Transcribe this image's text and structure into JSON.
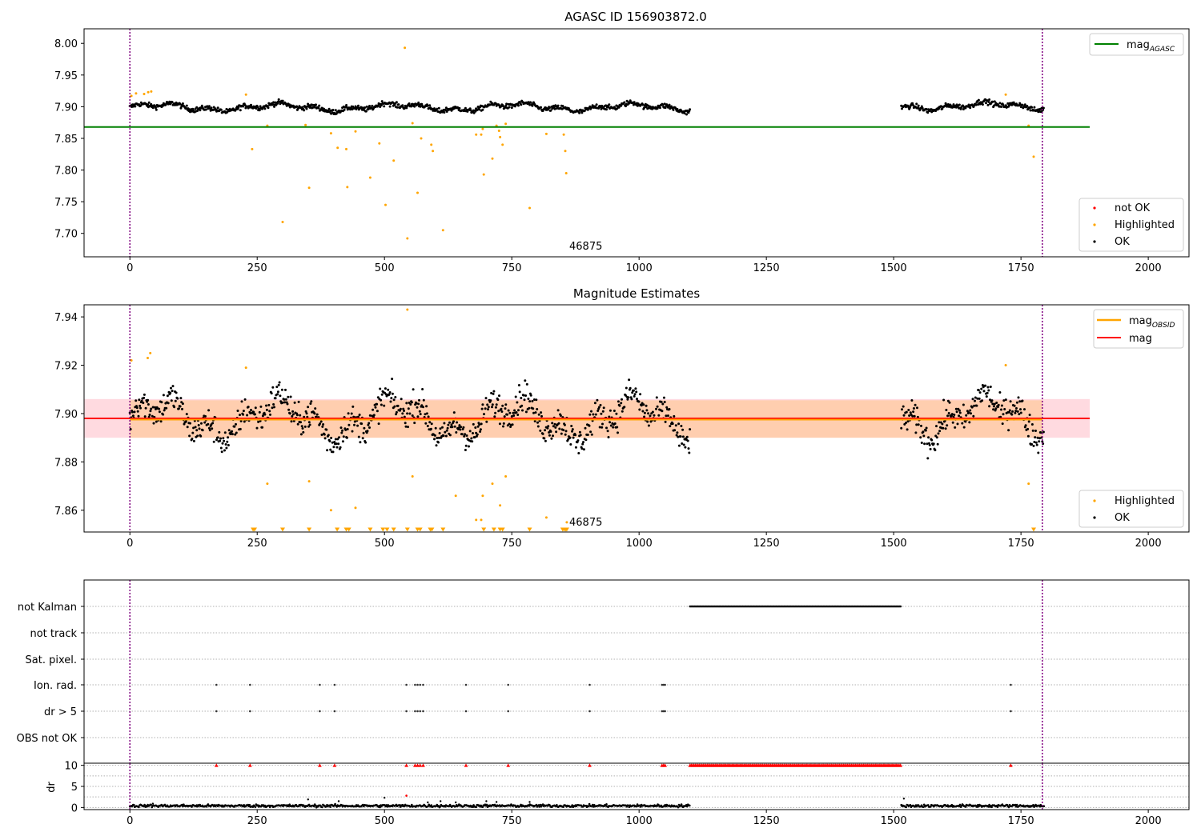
{
  "figure": {
    "top_title": "AGASC ID 156903872.0",
    "middle_title": "Magnitude Estimates",
    "obsid_label": "46875"
  },
  "colors": {
    "ok": "#000000",
    "highlighted": "#ffa500",
    "not_ok": "#ff0000",
    "mag_agasc": "#008000",
    "mag": "#ff0000",
    "mag_obsid": "#ffa500",
    "obs_boundary": "#800080",
    "band": "#ffb6c1"
  },
  "chart_data": [
    {
      "type": "scatter",
      "title": "AGASC ID 156903872.0",
      "xlabel": "",
      "ylabel": "",
      "xlim": [
        -90,
        2080
      ],
      "ylim": [
        7.663,
        8.023
      ],
      "xticks": [
        0,
        250,
        500,
        750,
        1000,
        1250,
        1500,
        1750,
        2000
      ],
      "yticks": [
        7.7,
        7.75,
        7.8,
        7.85,
        7.9,
        7.95,
        8.0
      ],
      "grid": false,
      "legend": [
        {
          "label": "mag",
          "subscript": "AGASC",
          "position": "top-right"
        },
        {
          "labels": [
            "not OK",
            "Highlighted",
            "OK"
          ],
          "position": "bottom-right"
        }
      ],
      "hlines": [
        {
          "name": "mag_AGASC",
          "y": 7.868,
          "x": [
            -90,
            1885
          ]
        }
      ],
      "vlines": [
        0,
        1792
      ],
      "annotation": {
        "text": "46875",
        "x": 860,
        "y": 7.682
      },
      "ok_segments": [
        {
          "x": [
            0,
            1100
          ],
          "center": 7.899
        },
        {
          "x": [
            1515,
            1795
          ],
          "center": 7.901
        }
      ],
      "highlighted_points": [
        [
          3,
          7.917
        ],
        [
          12,
          7.921
        ],
        [
          28,
          7.92
        ],
        [
          36,
          7.923
        ],
        [
          42,
          7.924
        ],
        [
          228,
          7.919
        ],
        [
          240,
          7.833
        ],
        [
          270,
          7.87
        ],
        [
          300,
          7.718
        ],
        [
          345,
          7.871
        ],
        [
          352,
          7.772
        ],
        [
          395,
          7.858
        ],
        [
          408,
          7.835
        ],
        [
          425,
          7.833
        ],
        [
          427,
          7.773
        ],
        [
          443,
          7.861
        ],
        [
          472,
          7.788
        ],
        [
          490,
          7.842
        ],
        [
          502,
          7.745
        ],
        [
          518,
          7.815
        ],
        [
          540,
          7.993
        ],
        [
          545,
          7.692
        ],
        [
          555,
          7.874
        ],
        [
          565,
          7.764
        ],
        [
          572,
          7.85
        ],
        [
          592,
          7.84
        ],
        [
          595,
          7.83
        ],
        [
          615,
          7.705
        ],
        [
          680,
          7.856
        ],
        [
          690,
          7.856
        ],
        [
          693,
          7.865
        ],
        [
          695,
          7.793
        ],
        [
          712,
          7.818
        ],
        [
          720,
          7.87
        ],
        [
          725,
          7.862
        ],
        [
          727,
          7.852
        ],
        [
          732,
          7.84
        ],
        [
          738,
          7.873
        ],
        [
          785,
          7.74
        ],
        [
          818,
          7.857
        ],
        [
          852,
          7.856
        ],
        [
          855,
          7.83
        ],
        [
          857,
          7.795
        ],
        [
          1720,
          7.919
        ],
        [
          1765,
          7.87
        ],
        [
          1775,
          7.821
        ]
      ]
    },
    {
      "type": "scatter",
      "title": "Magnitude Estimates",
      "xlabel": "",
      "ylabel": "",
      "xlim": [
        -90,
        2080
      ],
      "ylim": [
        7.851,
        7.945
      ],
      "xticks": [
        0,
        250,
        500,
        750,
        1000,
        1250,
        1500,
        1750,
        2000
      ],
      "yticks": [
        7.86,
        7.88,
        7.9,
        7.92,
        7.94
      ],
      "grid": false,
      "legend": [
        {
          "labels": [
            "mag_OBSID",
            "mag"
          ],
          "position": "top-right"
        },
        {
          "labels": [
            "Highlighted",
            "OK"
          ],
          "position": "bottom-right"
        }
      ],
      "hlines": [
        {
          "name": "mag",
          "y": 7.898,
          "x": [
            -90,
            1885
          ]
        },
        {
          "name": "mag_OBSID",
          "y": 7.8975,
          "x": [
            0,
            1792
          ]
        }
      ],
      "bands": [
        {
          "name": "mag",
          "y": [
            7.89,
            7.906
          ],
          "x": [
            -90,
            1885
          ]
        },
        {
          "name": "mag_OBSID",
          "y": [
            7.89,
            7.9055
          ],
          "x": [
            0,
            1792
          ]
        }
      ],
      "vlines": [
        0,
        1792
      ],
      "annotation": {
        "text": "46875",
        "x": 860,
        "y": 7.855
      },
      "ok_segments": [
        {
          "x": [
            0,
            1100
          ],
          "center": 7.898
        },
        {
          "x": [
            1515,
            1795
          ],
          "center": 7.899
        }
      ],
      "highlighted_points": [
        [
          3,
          7.922
        ],
        [
          35,
          7.923
        ],
        [
          40,
          7.925
        ],
        [
          228,
          7.919
        ],
        [
          270,
          7.871
        ],
        [
          352,
          7.872
        ],
        [
          395,
          7.86
        ],
        [
          443,
          7.861
        ],
        [
          545,
          7.943
        ],
        [
          555,
          7.874
        ],
        [
          640,
          7.866
        ],
        [
          680,
          7.856
        ],
        [
          690,
          7.856
        ],
        [
          693,
          7.866
        ],
        [
          712,
          7.871
        ],
        [
          727,
          7.862
        ],
        [
          738,
          7.874
        ],
        [
          818,
          7.857
        ],
        [
          858,
          7.855
        ],
        [
          1720,
          7.92
        ],
        [
          1765,
          7.871
        ]
      ],
      "offscale_markers_x": [
        242,
        245,
        300,
        352,
        407,
        425,
        430,
        472,
        497,
        505,
        518,
        545,
        565,
        570,
        590,
        593,
        615,
        695,
        715,
        727,
        732,
        785,
        850,
        853,
        856,
        858,
        1775
      ]
    },
    {
      "type": "scatter",
      "title": "",
      "xlabel": "",
      "ylabel": "",
      "xlim": [
        -90,
        2080
      ],
      "categories": [
        "not Kalman",
        "not track",
        "Sat. pixel.",
        "Ion. rad.",
        "dr > 5",
        "OBS not OK"
      ],
      "vlines": [
        0,
        1792
      ],
      "grid": true,
      "flag_points": {
        "not Kalman": {
          "range": [
            1100,
            1515
          ]
        },
        "not track": [],
        "Sat. pixel.": [],
        "Ion. rad.": [
          170,
          236,
          373,
          402,
          543,
          560,
          565,
          570,
          576,
          660,
          743,
          903,
          1045,
          1048,
          1051,
          1730
        ],
        "dr > 5": [
          170,
          236,
          373,
          402,
          543,
          560,
          565,
          570,
          576,
          660,
          743,
          903,
          1045,
          1048,
          1051,
          1730
        ],
        "OBS not OK": []
      }
    },
    {
      "type": "scatter",
      "title": "",
      "xlabel": "",
      "ylabel": "dr",
      "xlim": [
        -90,
        2080
      ],
      "ylim": [
        -0.5,
        10.5
      ],
      "xticks": [
        0,
        250,
        500,
        750,
        1000,
        1250,
        1500,
        1750,
        2000
      ],
      "yticks": [
        0,
        5,
        10
      ],
      "vlines": [
        0,
        1792
      ],
      "capped_markers_at_10": {
        "x_single": [
          170,
          236,
          373,
          402,
          543,
          560,
          565,
          570,
          576,
          660,
          743,
          903,
          1045,
          1048,
          1051,
          1730
        ],
        "range": [
          1100,
          1515
        ]
      },
      "ok_segments": [
        {
          "x": [
            0,
            1100
          ],
          "center": 0.4
        },
        {
          "x": [
            1515,
            1795
          ],
          "center": 0.4
        }
      ],
      "ok_outliers": [
        [
          45,
          0.9
        ],
        [
          350,
          1.9
        ],
        [
          410,
          1.5
        ],
        [
          500,
          2.3
        ],
        [
          585,
          1.2
        ],
        [
          610,
          1.5
        ],
        [
          640,
          1.2
        ],
        [
          700,
          1.5
        ],
        [
          720,
          1.3
        ],
        [
          785,
          1.3
        ],
        [
          1520,
          2.1
        ]
      ],
      "not_ok_points": [
        [
          543,
          2.8
        ]
      ]
    }
  ]
}
